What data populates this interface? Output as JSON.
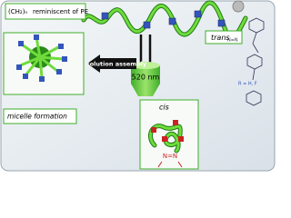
{
  "polymer_label": {
    "formula": "(CH₂)ₙ",
    "text": "reminiscent of PE"
  },
  "trans_label": "trans",
  "light_label": "520 nm",
  "arrow_label": "solution assembly",
  "micelle_label": "micelle formation",
  "cis_label": "cis",
  "azo_label": "N=N",
  "substituent_label": "R = H, F"
}
